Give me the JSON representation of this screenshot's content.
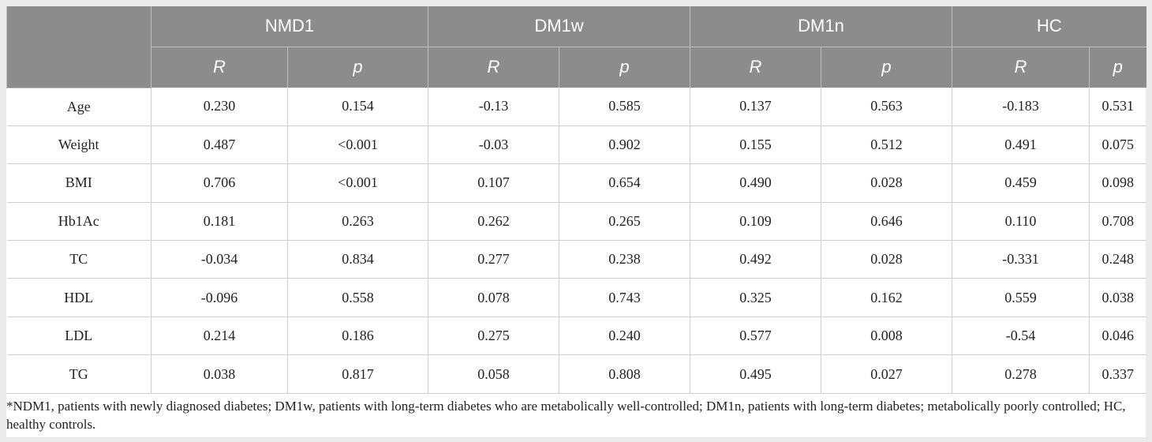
{
  "groups": [
    "NMD1",
    "DM1w",
    "DM1n",
    "HC"
  ],
  "sub_headers": [
    "R",
    "p",
    "R",
    "p",
    "R",
    "p",
    "R",
    "p"
  ],
  "rows": [
    {
      "label": "Age",
      "values": [
        "0.230",
        "0.154",
        "-0.13",
        "0.585",
        "0.137",
        "0.563",
        "-0.183",
        "0.531"
      ]
    },
    {
      "label": "Weight",
      "values": [
        "0.487",
        "<0.001",
        "-0.03",
        "0.902",
        "0.155",
        "0.512",
        "0.491",
        "0.075"
      ]
    },
    {
      "label": "BMI",
      "values": [
        "0.706",
        "<0.001",
        "0.107",
        "0.654",
        "0.490",
        "0.028",
        "0.459",
        "0.098"
      ]
    },
    {
      "label": "Hb1Ac",
      "values": [
        "0.181",
        "0.263",
        "0.262",
        "0.265",
        "0.109",
        "0.646",
        "0.110",
        "0.708"
      ]
    },
    {
      "label": "TC",
      "values": [
        "-0.034",
        "0.834",
        "0.277",
        "0.238",
        "0.492",
        "0.028",
        "-0.331",
        "0.248"
      ]
    },
    {
      "label": "HDL",
      "values": [
        "-0.096",
        "0.558",
        "0.078",
        "0.743",
        "0.325",
        "0.162",
        "0.559",
        "0.038"
      ]
    },
    {
      "label": "LDL",
      "values": [
        "0.214",
        "0.186",
        "0.275",
        "0.240",
        "0.577",
        "0.008",
        "-0.54",
        "0.046"
      ]
    },
    {
      "label": "TG",
      "values": [
        "0.038",
        "0.817",
        "0.058",
        "0.808",
        "0.495",
        "0.027",
        "0.278",
        "0.337"
      ]
    }
  ],
  "footnote": "*NDM1, patients with newly diagnosed diabetes; DM1w, patients with long-term diabetes who are metabolically well-controlled; DM1n, patients with long-term diabetes; metabolically poorly controlled; HC, healthy controls."
}
